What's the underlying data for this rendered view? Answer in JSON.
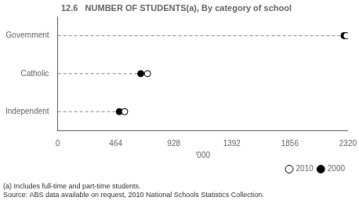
{
  "chart_data": {
    "type": "dot",
    "orientation": "horizontal",
    "title": "12.6   NUMBER OF STUDENTS(a), By category of school",
    "categories": [
      "Government",
      "Catholic",
      "Independent"
    ],
    "series": [
      {
        "name": "2000",
        "color": "#000000",
        "marker": "filled_circle",
        "values": [
          2289,
          664,
          493
        ]
      },
      {
        "name": "2010",
        "color": "#000000",
        "marker": "open_circle",
        "values": [
          2307,
          718,
          535
        ]
      }
    ],
    "xlabel": "'000",
    "xlim": [
      0,
      2320
    ],
    "xticks": [
      0,
      464,
      928,
      1392,
      1856,
      2320
    ],
    "annotations": [
      "(a) Includes full-time and part-time students.",
      "Source: ABS data available on request, 2010 National Schools Statistics Collection."
    ],
    "legend": "lower right",
    "grid": false
  }
}
